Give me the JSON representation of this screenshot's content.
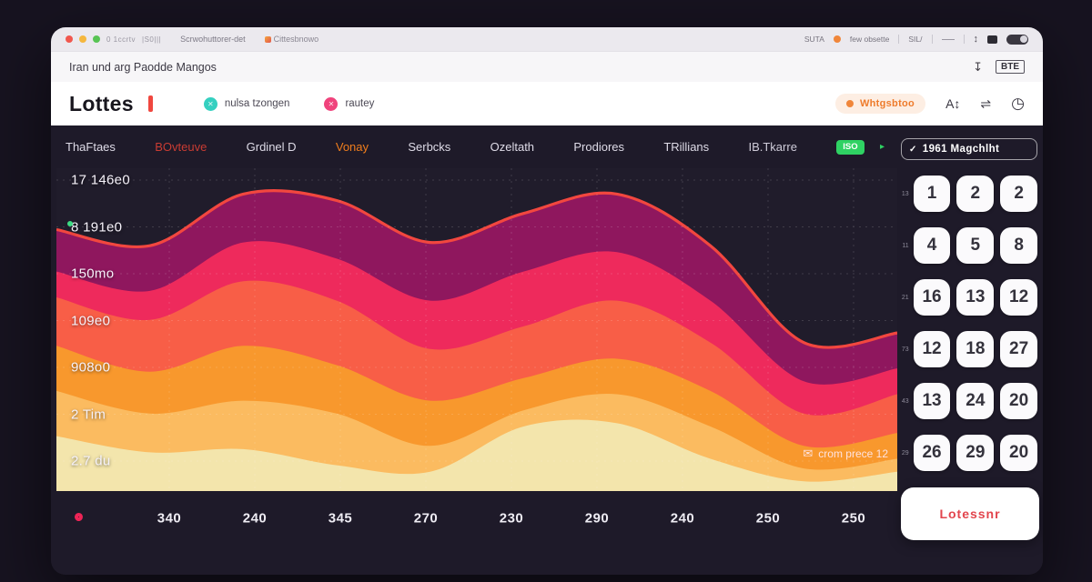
{
  "browser": {
    "traffic_colors": [
      "#f1574e",
      "#f5b73d",
      "#58c454"
    ],
    "left_text": "0 1ccrtv",
    "left_mini": "|S0|||",
    "tab_title": "Scrwohuttorer-det",
    "tab_badge": "Cittesbnowo",
    "right_text_1": "SUTA",
    "right_text_2": "few obsette",
    "right_text_3": "SIL/",
    "url_text": "Iran und arg Paodde Mangos",
    "bte_label": "BTE",
    "download_glyph": "↧"
  },
  "header": {
    "title": "Lottes",
    "legend": [
      {
        "label": "nulsa tzongen",
        "color": "#35d0c0",
        "glyph": "✕"
      },
      {
        "label": "rautey",
        "color": "#f0437c",
        "glyph": "✕"
      }
    ],
    "badge_label": "Whtgsbtoo",
    "badge_color": "#ee7b2b",
    "icon_sort": "A↕",
    "icon_shuffle": "⇌",
    "icon_clock": "◷"
  },
  "tabs": [
    {
      "label": "ThaFtaes",
      "color": "#dfdce8"
    },
    {
      "label": "BOvteuve",
      "color": "#c93c33"
    },
    {
      "label": "Grdinel D",
      "color": "#dfdce8"
    },
    {
      "label": "Vonay",
      "color": "#ef7d1d"
    },
    {
      "label": "Serbcks",
      "color": "#dfdce8"
    },
    {
      "label": "Ozeltath",
      "color": "#dfdce8"
    },
    {
      "label": "Prodiores",
      "color": "#dfdce8"
    },
    {
      "label": "TRillians",
      "color": "#dfdce8"
    },
    {
      "label": "IB.Tkarre",
      "color": "#cfccd9"
    }
  ],
  "tabs_badge": "ISO",
  "tabs_caret": "▸",
  "panel": {
    "header": "1961 Magchlht",
    "check_glyph": "✓",
    "rows": [
      {
        "label": "13",
        "numbers": [
          "1",
          "2",
          "2"
        ]
      },
      {
        "label": "11",
        "numbers": [
          "4",
          "5",
          "8"
        ]
      },
      {
        "label": "21",
        "numbers": [
          "16",
          "13",
          "12"
        ]
      },
      {
        "label": "73",
        "numbers": [
          "12",
          "18",
          "27"
        ]
      },
      {
        "label": "43",
        "numbers": [
          "13",
          "24",
          "20"
        ]
      },
      {
        "label": "29",
        "numbers": [
          "26",
          "29",
          "20"
        ]
      }
    ],
    "button_label": "Lotessnr"
  },
  "chart_data": {
    "type": "area",
    "title": "",
    "xlabel": "",
    "ylabel": "",
    "grid": "dashed",
    "legend_position": "none",
    "units": "relative-height-%",
    "x_tick_labels": [
      "340",
      "240",
      "345",
      "270",
      "230",
      "290",
      "240",
      "250",
      "250"
    ],
    "y_tick_labels": [
      "17 146e0",
      "8 191e0",
      "150mo",
      "109e0",
      "908o0",
      "2 Tim",
      "2.7 du"
    ],
    "annotation": "crom prece 12",
    "annotation_glyph": "✉",
    "background": "#201c2b",
    "series": [
      {
        "name": "layer-purple",
        "color": "#8f175e",
        "line_color": "#f2473f",
        "values": [
          81,
          76,
          92,
          90,
          77,
          86,
          92,
          76,
          46,
          49
        ]
      },
      {
        "name": "layer-pink",
        "color": "#ee2a5c",
        "values": [
          68,
          62,
          77,
          72,
          59,
          68,
          74,
          59,
          34,
          38
        ]
      },
      {
        "name": "layer-coral",
        "color": "#f85e47",
        "values": [
          60,
          53,
          65,
          59,
          44,
          51,
          59,
          46,
          24,
          30
        ]
      },
      {
        "name": "layer-orange",
        "color": "#f8982d",
        "values": [
          45,
          37,
          45,
          39,
          28,
          35,
          41,
          31,
          14,
          18
        ]
      },
      {
        "name": "layer-light-orange",
        "color": "#fbbb60",
        "values": [
          31,
          24,
          28,
          24,
          14,
          25,
          30,
          20,
          7,
          10
        ]
      },
      {
        "name": "layer-cream",
        "color": "#f3e5ac",
        "values": [
          17,
          12,
          13,
          8,
          6,
          20,
          21,
          10,
          3,
          6
        ]
      }
    ]
  }
}
